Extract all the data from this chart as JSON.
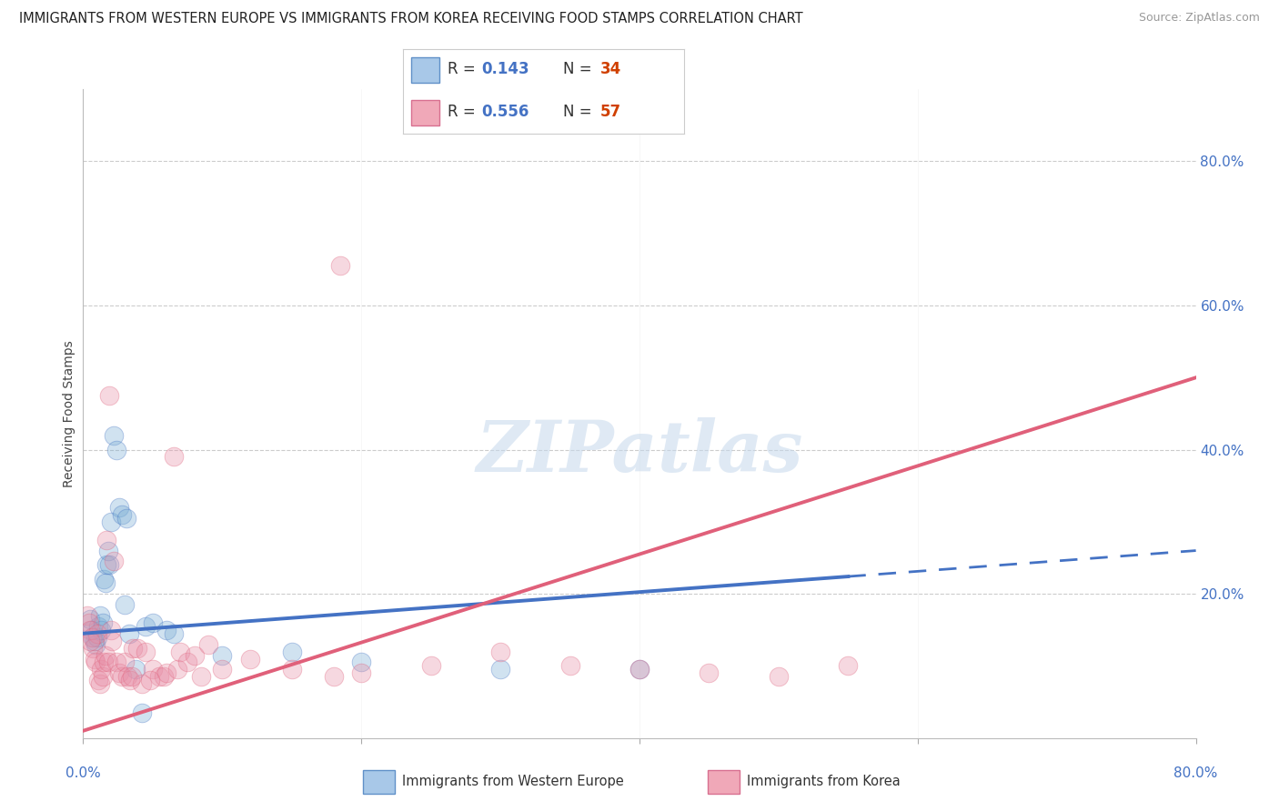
{
  "title": "IMMIGRANTS FROM WESTERN EUROPE VS IMMIGRANTS FROM KOREA RECEIVING FOOD STAMPS CORRELATION CHART",
  "source": "Source: ZipAtlas.com",
  "ylabel": "Receiving Food Stamps",
  "legend_entries": [
    {
      "label": "Immigrants from Western Europe",
      "R": "0.143",
      "N": "34",
      "color_fill": "#a8c8e8",
      "color_edge": "#6090c8"
    },
    {
      "label": "Immigrants from Korea",
      "R": "0.556",
      "N": "57",
      "color_fill": "#f0a8b8",
      "color_edge": "#d87090"
    }
  ],
  "blue_points": [
    [
      0.5,
      16.5
    ],
    [
      0.6,
      15.0
    ],
    [
      0.7,
      14.0
    ],
    [
      0.8,
      13.5
    ],
    [
      0.9,
      13.0
    ],
    [
      1.0,
      14.0
    ],
    [
      1.1,
      15.5
    ],
    [
      1.2,
      17.0
    ],
    [
      1.3,
      15.0
    ],
    [
      1.4,
      16.0
    ],
    [
      1.5,
      22.0
    ],
    [
      1.6,
      21.5
    ],
    [
      1.7,
      24.0
    ],
    [
      1.8,
      26.0
    ],
    [
      1.9,
      24.0
    ],
    [
      2.0,
      30.0
    ],
    [
      2.2,
      42.0
    ],
    [
      2.4,
      40.0
    ],
    [
      2.6,
      32.0
    ],
    [
      2.8,
      31.0
    ],
    [
      3.0,
      18.5
    ],
    [
      3.1,
      30.5
    ],
    [
      3.3,
      14.5
    ],
    [
      3.8,
      9.5
    ],
    [
      4.2,
      3.5
    ],
    [
      4.5,
      15.5
    ],
    [
      5.0,
      16.0
    ],
    [
      6.0,
      15.0
    ],
    [
      6.5,
      14.5
    ],
    [
      10.0,
      11.5
    ],
    [
      15.0,
      12.0
    ],
    [
      20.0,
      10.5
    ],
    [
      30.0,
      9.5
    ],
    [
      40.0,
      9.5
    ]
  ],
  "pink_points": [
    [
      0.3,
      17.0
    ],
    [
      0.4,
      16.0
    ],
    [
      0.5,
      15.0
    ],
    [
      0.6,
      14.0
    ],
    [
      0.7,
      12.5
    ],
    [
      0.8,
      11.0
    ],
    [
      0.9,
      10.5
    ],
    [
      1.0,
      14.5
    ],
    [
      1.1,
      8.0
    ],
    [
      1.2,
      7.5
    ],
    [
      1.3,
      9.5
    ],
    [
      1.4,
      8.5
    ],
    [
      1.5,
      10.5
    ],
    [
      1.6,
      11.5
    ],
    [
      1.7,
      27.5
    ],
    [
      1.8,
      10.5
    ],
    [
      2.0,
      15.0
    ],
    [
      2.1,
      13.5
    ],
    [
      2.2,
      24.5
    ],
    [
      2.4,
      10.5
    ],
    [
      2.6,
      9.0
    ],
    [
      2.8,
      8.5
    ],
    [
      3.0,
      10.5
    ],
    [
      3.2,
      8.5
    ],
    [
      3.4,
      8.0
    ],
    [
      3.6,
      12.5
    ],
    [
      3.9,
      12.5
    ],
    [
      4.2,
      7.5
    ],
    [
      4.5,
      12.0
    ],
    [
      5.0,
      9.5
    ],
    [
      5.5,
      8.5
    ],
    [
      5.8,
      8.5
    ],
    [
      6.0,
      9.0
    ],
    [
      6.5,
      39.0
    ],
    [
      6.8,
      9.5
    ],
    [
      7.0,
      12.0
    ],
    [
      7.5,
      10.5
    ],
    [
      8.0,
      11.5
    ],
    [
      8.5,
      8.5
    ],
    [
      9.0,
      13.0
    ],
    [
      10.0,
      9.5
    ],
    [
      12.0,
      11.0
    ],
    [
      15.0,
      9.5
    ],
    [
      18.0,
      8.5
    ],
    [
      18.5,
      65.5
    ],
    [
      20.0,
      9.0
    ],
    [
      25.0,
      10.0
    ],
    [
      30.0,
      12.0
    ],
    [
      35.0,
      10.0
    ],
    [
      40.0,
      9.5
    ],
    [
      45.0,
      9.0
    ],
    [
      50.0,
      8.5
    ],
    [
      55.0,
      10.0
    ],
    [
      0.5,
      13.5
    ],
    [
      1.9,
      47.5
    ],
    [
      3.5,
      8.5
    ],
    [
      4.8,
      8.0
    ]
  ],
  "blue_line": {
    "x0": 0,
    "y0": 14.5,
    "x1": 80,
    "y1": 26.0
  },
  "blue_solid_end": 55,
  "pink_line": {
    "x0": 0,
    "y0": 1.0,
    "x1": 80,
    "y1": 50.0
  },
  "xlim": [
    0,
    80
  ],
  "ylim": [
    0,
    90
  ],
  "ytick_vals": [
    20,
    40,
    60,
    80
  ],
  "ytick_labels": [
    "20.0%",
    "40.0%",
    "60.0%",
    "80.0%"
  ],
  "watermark_text": "ZIPatlas",
  "background_color": "#ffffff",
  "grid_color": "#cccccc",
  "blue_scatter_color": "#7aaed4",
  "pink_scatter_color": "#e890a8",
  "blue_line_color": "#4472c4",
  "pink_line_color": "#e0607a",
  "title_fontsize": 10.5,
  "source_fontsize": 9,
  "legend_R_color": "#4472c4",
  "legend_N_color": "#d04000"
}
